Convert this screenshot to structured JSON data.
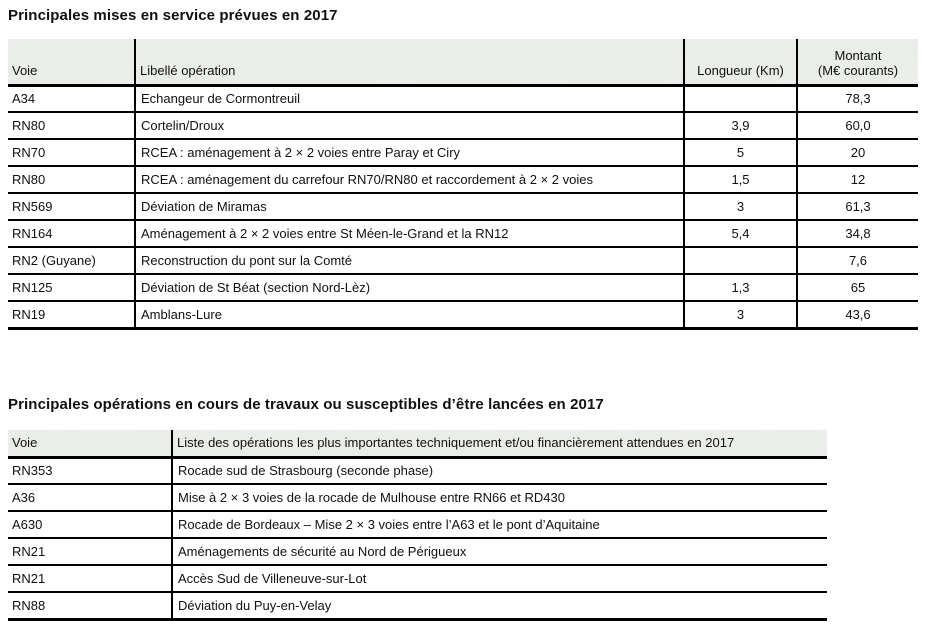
{
  "colors": {
    "header_bg": "#ecefea",
    "border": "#000000",
    "text": "#111111"
  },
  "table1": {
    "title": "Principales mises en service prévues en 2017",
    "headers": {
      "voie": "Voie",
      "libelle": "Libellé opération",
      "longueur": "Longueur (Km)",
      "montant_line1": "Montant",
      "montant_line2": "(M€ courants)"
    },
    "rows": [
      {
        "voie": "A34",
        "libelle": "Echangeur de Cormontreuil",
        "longueur": "",
        "montant": "78,3"
      },
      {
        "voie": "RN80",
        "libelle": "Cortelin/Droux",
        "longueur": "3,9",
        "montant": "60,0"
      },
      {
        "voie": "RN70",
        "libelle": "RCEA : aménagement à 2 × 2 voies entre Paray et Ciry",
        "longueur": "5",
        "montant": "20"
      },
      {
        "voie": "RN80",
        "libelle": "RCEA : aménagement du carrefour RN70/RN80 et raccordement à 2 × 2 voies",
        "longueur": "1,5",
        "montant": "12"
      },
      {
        "voie": "RN569",
        "libelle": "Déviation de Miramas",
        "longueur": "3",
        "montant": "61,3"
      },
      {
        "voie": "RN164",
        "libelle": "Aménagement à 2 × 2 voies entre St Méen-le-Grand et la RN12",
        "longueur": "5,4",
        "montant": "34,8"
      },
      {
        "voie": "RN2 (Guyane)",
        "libelle": "Reconstruction du pont sur la Comté",
        "longueur": "",
        "montant": "7,6"
      },
      {
        "voie": "RN125",
        "libelle": "Déviation de St Béat (section Nord-Lèz)",
        "longueur": "1,3",
        "montant": "65"
      },
      {
        "voie": "RN19",
        "libelle": "Amblans-Lure",
        "longueur": "3",
        "montant": "43,6"
      }
    ]
  },
  "table2": {
    "title": "Principales opérations en cours de travaux ou susceptibles d’être lancées en 2017",
    "headers": {
      "voie": "Voie",
      "liste": "Liste des opérations les plus importantes techniquement et/ou financièrement attendues en 2017"
    },
    "rows": [
      {
        "voie": "RN353",
        "libelle": "Rocade sud de Strasbourg (seconde phase)"
      },
      {
        "voie": "A36",
        "libelle": "Mise à 2 × 3 voies de la rocade de Mulhouse entre RN66 et RD430"
      },
      {
        "voie": "A630",
        "libelle": "Rocade de Bordeaux – Mise 2 × 3 voies entre l’A63 et le pont d’Aquitaine"
      },
      {
        "voie": "RN21",
        "libelle": "Aménagements de sécurité au Nord de Périgueux"
      },
      {
        "voie": "RN21",
        "libelle": "Accès Sud de Villeneuve-sur-Lot"
      },
      {
        "voie": "RN88",
        "libelle": "Déviation du Puy-en-Velay"
      }
    ]
  }
}
